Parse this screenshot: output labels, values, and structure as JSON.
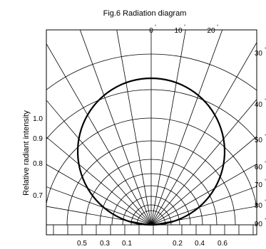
{
  "chart_data": {
    "type": "polar",
    "title": "Fig.6 Radiation diagram",
    "ylabel": "Relative radiant intensity",
    "angle_ticks": [
      "0",
      "10",
      "20",
      "30",
      "40",
      "50",
      "60",
      "70",
      "80",
      "90"
    ],
    "angle_unit_mark": "°",
    "intensity_ticks": [
      "1.0",
      "0.9",
      "0.8",
      "0.7"
    ],
    "bottom_ticks_left": [
      "0.5",
      "0.3",
      "0.1"
    ],
    "bottom_ticks_right": [
      "0.2",
      "0.4",
      "0.6"
    ],
    "angle_range": [
      0,
      90
    ],
    "intensity_range": [
      0,
      1
    ],
    "grid": true,
    "series": [
      {
        "angles": [
          0,
          10,
          20,
          30,
          40,
          50,
          60,
          70,
          80,
          90
        ],
        "values": [
          1.0,
          0.985,
          0.94,
          0.866,
          0.766,
          0.643,
          0.5,
          0.342,
          0.174,
          0.0
        ]
      }
    ]
  }
}
